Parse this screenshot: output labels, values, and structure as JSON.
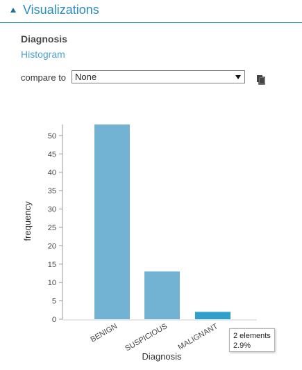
{
  "section": {
    "title": "Visualizations"
  },
  "variable": {
    "name": "Diagnosis",
    "chart_kind": "Histogram"
  },
  "compare": {
    "label": "compare to",
    "selected": "None"
  },
  "tooltip": {
    "line1": "2 elements",
    "line2": "2.9%"
  },
  "colors": {
    "bar": "#72b3d4",
    "bar_highlight": "#2f9fcc",
    "accent": "#2a8dbf"
  },
  "chart_data": {
    "type": "bar",
    "categories": [
      "BENIGN",
      "SUSPICIOUS",
      "MALIGNANT"
    ],
    "values": [
      53,
      13,
      2
    ],
    "highlighted_index": 2,
    "xlabel": "Diagnosis",
    "ylabel": "frequency",
    "ylim": [
      0,
      53
    ],
    "yticks": [
      0,
      5,
      10,
      15,
      20,
      25,
      30,
      35,
      40,
      45,
      50
    ],
    "grid": false
  }
}
